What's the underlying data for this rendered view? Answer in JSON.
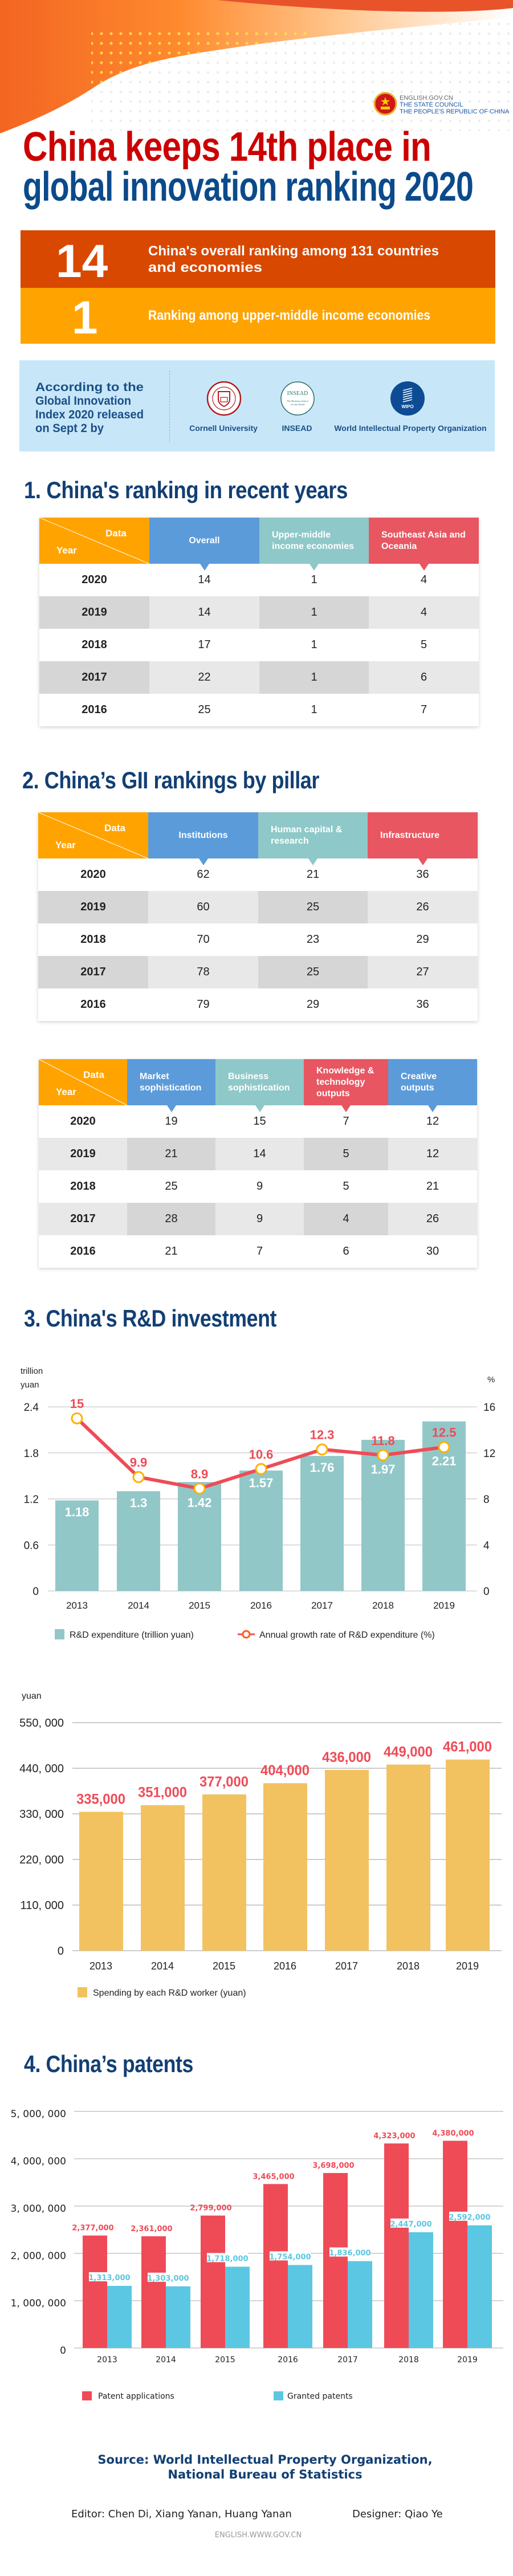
{
  "header": {
    "site": "ENGLISH.GOV.CN",
    "org_line1": "THE STATE COUNCIL",
    "org_line2": "THE PEOPLE'S REPUBLIC OF CHINA",
    "title_line1": "China keeps 14th place in",
    "title_line2": "global innovation ranking 2020",
    "title_color_1": "#CC0000",
    "title_color_2": "#0B4A8B"
  },
  "highlights": [
    {
      "number": "14",
      "text_line1": "China's overall ranking among 131 countries",
      "text_line2": "and economies",
      "color": "#D84800"
    },
    {
      "number": "1",
      "text_line1": "Ranking among upper-middle income economies",
      "color": "#FFA300"
    }
  ],
  "source_box": {
    "intro_lines": [
      "According to the",
      "Global Innovation",
      "Index 2020 released",
      "on Sept 2 by"
    ],
    "orgs": [
      {
        "name": "Cornell University",
        "icon": "cornell-seal-logo"
      },
      {
        "name": "INSEAD",
        "icon": "insead-logo",
        "logo_text": "INSEAD",
        "logo_subtext": "The Business School for the World"
      },
      {
        "name": "World Intellectual Property Organization",
        "icon": "wipo-logo",
        "logo_text": "WIPO"
      }
    ]
  },
  "section1": {
    "heading": "1. China's ranking in recent years",
    "table": {
      "corner_data": "Data",
      "corner_year": "Year",
      "columns": [
        "Overall",
        "Upper-middle income economies",
        "Southeast Asia and Oceania"
      ],
      "rows": [
        [
          "2020",
          "14",
          "1",
          "4"
        ],
        [
          "2019",
          "14",
          "1",
          "4"
        ],
        [
          "2018",
          "17",
          "1",
          "5"
        ],
        [
          "2017",
          "22",
          "1",
          "6"
        ],
        [
          "2016",
          "25",
          "1",
          "7"
        ]
      ]
    }
  },
  "section2": {
    "heading": "2. China’s GII rankings by pillar",
    "table_a": {
      "corner_data": "Data",
      "corner_year": "Year",
      "columns": [
        "Institutions",
        "Human capital & research",
        "Infrastructure"
      ],
      "rows": [
        [
          "2020",
          "62",
          "21",
          "36"
        ],
        [
          "2019",
          "60",
          "25",
          "26"
        ],
        [
          "2018",
          "70",
          "23",
          "29"
        ],
        [
          "2017",
          "78",
          "25",
          "27"
        ],
        [
          "2016",
          "79",
          "29",
          "36"
        ]
      ]
    },
    "table_b": {
      "corner_data": "Data",
      "corner_year": "Year",
      "columns": [
        "Market sophistication",
        "Business sophistication",
        "Knowledge & technology outputs",
        "Creative outputs"
      ],
      "rows": [
        [
          "2020",
          "19",
          "15",
          "7",
          "12"
        ],
        [
          "2019",
          "21",
          "14",
          "5",
          "12"
        ],
        [
          "2018",
          "25",
          "9",
          "5",
          "21"
        ],
        [
          "2017",
          "28",
          "9",
          "4",
          "26"
        ],
        [
          "2016",
          "21",
          "7",
          "6",
          "30"
        ]
      ]
    }
  },
  "colors": {
    "orange": "#FFA300",
    "blue": "#5B9BDA",
    "teal": "#8FC8C8",
    "red": "#E85662"
  },
  "section3": {
    "heading": "3. China's R&D investment"
  },
  "section4": {
    "heading": "4. China’s patents"
  },
  "chart_data": [
    {
      "type": "bar+line",
      "categories": [
        "2013",
        "2014",
        "2015",
        "2016",
        "2017",
        "2018",
        "2019"
      ],
      "y_left_label_lines": [
        "trillion",
        "yuan"
      ],
      "y_right_label": "%",
      "y_left_ticks": [
        "2.4",
        "1.8",
        "1.2",
        "0.6",
        "0"
      ],
      "y_right_ticks": [
        "16",
        "12",
        "8",
        "4",
        "0"
      ],
      "ylim_left": [
        0,
        2.4
      ],
      "ylim_right": [
        0,
        16
      ],
      "grid": true,
      "legend_placement": "bottom",
      "series": [
        {
          "name": "R&D expenditure (trillion yuan)",
          "kind": "bar",
          "color": "#92C7C8",
          "values": [
            1.18,
            1.3,
            1.42,
            1.57,
            1.76,
            1.97,
            2.21
          ]
        },
        {
          "name": "Annual growth rate of R&D expenditure (%)",
          "kind": "line",
          "color": "#EF4B57",
          "marker_color": "#FFB000",
          "values": [
            15,
            9.9,
            8.9,
            10.6,
            12.3,
            11.8,
            12.5
          ]
        }
      ]
    },
    {
      "type": "bar",
      "categories": [
        "2013",
        "2014",
        "2015",
        "2016",
        "2017",
        "2018",
        "2019"
      ],
      "y_label": "yuan",
      "y_ticks": [
        "550, 000",
        "440, 000",
        "330, 000",
        "220, 000",
        "110, 000",
        "0"
      ],
      "ylim": [
        0,
        550000
      ],
      "grid": true,
      "legend_placement": "bottom-left",
      "series": [
        {
          "name": "Spending by each R&D worker (yuan)",
          "color": "#F2C261",
          "label_color": "#EF4B57",
          "values": [
            335000,
            351000,
            377000,
            404000,
            436000,
            449000,
            461000
          ]
        }
      ]
    },
    {
      "type": "bar",
      "categories": [
        "2013",
        "2014",
        "2015",
        "2016",
        "2017",
        "2018",
        "2019"
      ],
      "y_ticks": [
        "5, 000, 000",
        "4, 000, 000",
        "3, 000, 000",
        "2, 000, 000",
        "1, 000, 000",
        "0"
      ],
      "ylim": [
        0,
        5000000
      ],
      "grid": true,
      "legend_placement": "bottom",
      "series": [
        {
          "name": "Patent applications",
          "color": "#EF4B57",
          "values": [
            2377000,
            2361000,
            2799000,
            3465000,
            3698000,
            4323000,
            4380000
          ]
        },
        {
          "name": "Granted patents",
          "color": "#5BC7E2",
          "values": [
            1313000,
            1303000,
            1718000,
            1754000,
            1836000,
            2447000,
            2592000
          ]
        }
      ]
    }
  ],
  "footer": {
    "source_line1": "Source: World Intellectual Property Organization,",
    "source_line2": "National Bureau of Statistics",
    "editor": "Editor: Chen Di, Xiang Yanan, Huang Yanan",
    "designer": "Designer: Qiao Ye",
    "url": "ENGLISH.WWW.GOV.CN"
  }
}
